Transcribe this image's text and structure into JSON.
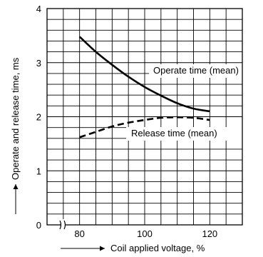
{
  "chart_data": {
    "type": "line",
    "title": "",
    "xlabel": "Coil applied voltage, %",
    "ylabel": "Operate and release time, ms",
    "xlim": [
      70,
      130
    ],
    "ylim": [
      0,
      4
    ],
    "x_axis_break": true,
    "x_ticks": [
      80,
      100,
      120
    ],
    "y_ticks": [
      0,
      1,
      2,
      3,
      4
    ],
    "grid": true,
    "series": [
      {
        "name": "Operate time (mean)",
        "style": "solid",
        "x": [
          80,
          85,
          90,
          95,
          100,
          105,
          110,
          115,
          120
        ],
        "y": [
          3.48,
          3.2,
          2.96,
          2.74,
          2.55,
          2.39,
          2.25,
          2.15,
          2.1
        ]
      },
      {
        "name": "Release time (mean)",
        "style": "dashed",
        "x": [
          80,
          85,
          90,
          95,
          100,
          105,
          110,
          115,
          120
        ],
        "y": [
          1.62,
          1.72,
          1.82,
          1.89,
          1.94,
          1.98,
          1.99,
          1.98,
          1.94
        ]
      }
    ]
  }
}
